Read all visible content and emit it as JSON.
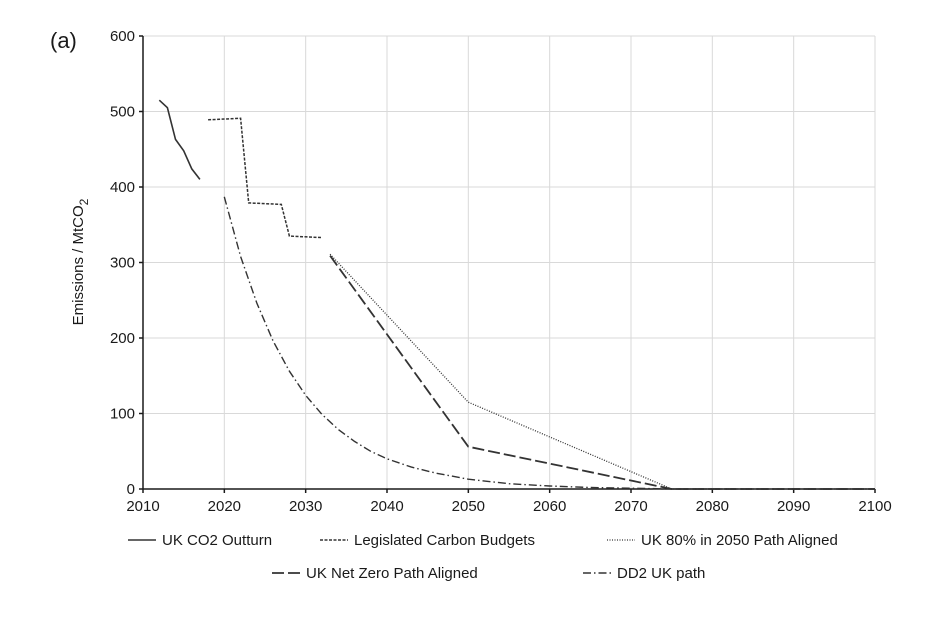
{
  "chart_data": {
    "type": "line",
    "panel_label": "(a)",
    "title": "",
    "xlabel": "",
    "ylabel": "Emissions / MtCO",
    "ylabel_subscript": "2",
    "xlim": [
      2010,
      2100
    ],
    "ylim": [
      0,
      600
    ],
    "x_ticks": [
      2010,
      2020,
      2030,
      2040,
      2050,
      2060,
      2070,
      2080,
      2090,
      2100
    ],
    "y_ticks": [
      0,
      100,
      200,
      300,
      400,
      500,
      600
    ],
    "grid": true,
    "legend_position": "bottom",
    "series": [
      {
        "name": "UK CO2 Outturn",
        "style": "solid",
        "points": [
          [
            2012,
            515
          ],
          [
            2013,
            505
          ],
          [
            2014,
            463
          ],
          [
            2015,
            448
          ],
          [
            2016,
            424
          ],
          [
            2017,
            410
          ]
        ]
      },
      {
        "name": "Legislated Carbon Budgets",
        "style": "dashed",
        "points": [
          [
            2018,
            489
          ],
          [
            2022,
            491
          ],
          [
            2023,
            379
          ],
          [
            2027,
            377
          ],
          [
            2028,
            335
          ],
          [
            2032,
            333
          ]
        ]
      },
      {
        "name": "UK 80% in 2050 Path Aligned",
        "style": "dotted",
        "points": [
          [
            2033,
            311
          ],
          [
            2050,
            115
          ],
          [
            2075,
            0
          ],
          [
            2100,
            0
          ]
        ]
      },
      {
        "name": "UK Net Zero Path Aligned",
        "style": "longdash",
        "points": [
          [
            2033,
            309
          ],
          [
            2050,
            56
          ],
          [
            2075,
            0
          ],
          [
            2100,
            0
          ]
        ]
      },
      {
        "name": "DD2 UK path",
        "style": "dashdot",
        "points": [
          [
            2020,
            387
          ],
          [
            2022,
            308
          ],
          [
            2024,
            246
          ],
          [
            2026,
            196
          ],
          [
            2028,
            156
          ],
          [
            2030,
            124
          ],
          [
            2032,
            99
          ],
          [
            2034,
            79
          ],
          [
            2036,
            63
          ],
          [
            2038,
            50
          ],
          [
            2040,
            40
          ],
          [
            2043,
            29
          ],
          [
            2046,
            21
          ],
          [
            2050,
            13
          ],
          [
            2055,
            7
          ],
          [
            2060,
            4
          ],
          [
            2065,
            2
          ],
          [
            2070,
            1
          ],
          [
            2075,
            0
          ],
          [
            2100,
            0
          ]
        ]
      }
    ]
  }
}
